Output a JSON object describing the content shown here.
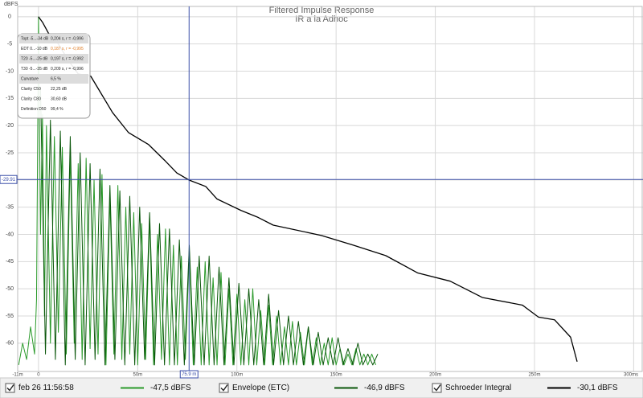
{
  "chart_data": {
    "type": "line",
    "title": "Filtered Impulse Response",
    "subtitle": "IR a la Adhoc",
    "y_label": "dBFS",
    "xlim": [
      -10.5,
      304.7
    ],
    "ylim": [
      -65.2,
      1.9
    ],
    "xticks": [
      {
        "value": -10.5,
        "label": "-11m"
      },
      0,
      {
        "value": 50,
        "label": "50m"
      },
      {
        "value": 100,
        "label": "100m"
      },
      {
        "value": 150,
        "label": "150m"
      },
      {
        "value": 200,
        "label": "200m"
      },
      {
        "value": 250,
        "label": "250m"
      },
      {
        "value": 300,
        "label": "300ms"
      }
    ],
    "yticks": [
      0,
      -5,
      -10,
      -15,
      -20,
      -25,
      -30,
      -35,
      -40,
      -45,
      -50,
      -55,
      -60
    ],
    "grid": true,
    "cursor": {
      "x": {
        "value": 75.9,
        "label": "75.9 m"
      },
      "y": -29.91,
      "color": "#3a4ea8"
    },
    "series": [
      {
        "name": "feb 26 11:56:58",
        "color": "#2a9a2a",
        "readout": "-47,5 dBFS",
        "x": [
          -10,
          -8,
          -6,
          -4,
          -2,
          -1,
          0,
          1,
          2,
          3,
          4,
          6,
          8,
          10,
          12,
          14,
          16,
          18,
          20,
          22,
          24,
          26,
          28,
          30,
          32,
          34,
          36,
          38,
          40,
          42,
          44,
          46,
          48,
          50,
          52,
          54,
          56,
          58,
          60,
          62,
          64,
          66,
          68,
          70,
          72,
          74,
          76,
          78,
          80,
          82,
          84,
          86,
          88,
          90,
          92,
          94,
          96,
          98,
          100,
          102,
          104,
          106,
          108,
          110,
          112,
          114,
          116,
          118,
          120,
          122,
          124,
          126,
          128,
          130,
          132,
          134,
          136,
          138,
          140,
          142,
          144,
          146,
          148,
          150,
          152,
          154,
          156,
          158,
          160,
          162,
          164,
          166,
          168,
          170
        ],
        "values": [
          -64,
          -60,
          -63,
          -57,
          -62,
          -52,
          0,
          -40,
          -18,
          -55,
          -20,
          -60,
          -22,
          -58,
          -24,
          -62,
          -25,
          -60,
          -27,
          -63,
          -26,
          -61,
          -30,
          -62,
          -29,
          -64,
          -33,
          -62,
          -31,
          -63,
          -35,
          -62,
          -36,
          -64,
          -38,
          -63,
          -37,
          -64,
          -40,
          -63,
          -39,
          -64,
          -42,
          -64,
          -44,
          -63,
          -43,
          -64,
          -46,
          -64,
          -45,
          -64,
          -48,
          -64,
          -47,
          -64,
          -50,
          -64,
          -51,
          -64,
          -52,
          -64,
          -50,
          -64,
          -54,
          -64,
          -53,
          -64,
          -55,
          -64,
          -57,
          -64,
          -56,
          -64,
          -58,
          -64,
          -57,
          -64,
          -59,
          -64,
          -60,
          -64,
          -59,
          -64,
          -61,
          -64,
          -62,
          -64,
          -61,
          -64,
          -62,
          -64,
          -62,
          -64
        ]
      },
      {
        "name": "Envelope (ETC)",
        "color": "#0a560a",
        "readout": "-46,9 dBFS",
        "x": [
          1,
          3.5,
          6,
          8.5,
          11,
          13.5,
          16,
          18.5,
          21,
          23.5,
          26,
          28.5,
          31,
          33.5,
          36,
          38.5,
          41,
          43.5,
          46,
          48.5,
          51,
          53.5,
          56,
          58.5,
          61,
          63.5,
          66,
          68.5,
          71,
          73.5,
          76,
          78.5,
          81,
          83.5,
          86,
          88.5,
          91,
          93.5,
          96,
          98.5,
          101,
          103.5,
          106,
          108.5,
          111,
          113.5,
          116,
          118.5,
          121,
          123.5,
          126,
          128.5,
          131,
          133.5,
          136,
          138.5,
          141,
          143.5,
          146,
          148.5,
          151,
          153.5,
          156,
          158.5,
          161,
          163.5,
          166,
          168.5,
          171
        ],
        "values": [
          -13,
          -62,
          -19,
          -63,
          -21,
          -64,
          -22,
          -63,
          -25,
          -64,
          -27,
          -63,
          -28,
          -64,
          -31,
          -63,
          -32,
          -64,
          -33,
          -64,
          -35,
          -63,
          -36,
          -64,
          -38,
          -64,
          -39,
          -64,
          -41,
          -64,
          -42,
          -64,
          -44,
          -64,
          -44,
          -64,
          -46,
          -64,
          -48,
          -64,
          -49,
          -64,
          -50,
          -64,
          -52,
          -64,
          -51,
          -64,
          -54,
          -64,
          -55,
          -64,
          -56,
          -64,
          -57,
          -64,
          -58,
          -64,
          -59,
          -64,
          -59,
          -64,
          -61,
          -64,
          -60,
          -64,
          -62,
          -64,
          -62
        ]
      },
      {
        "name": "Schroeder Integral",
        "color": "#000000",
        "readout": "-30,1 dBFS",
        "x": [
          0,
          2,
          5,
          10,
          15,
          20,
          26.3,
          37.3,
          45.4,
          55.5,
          63.6,
          69.7,
          75.8,
          84.3,
          90,
          102.1,
          110.2,
          118.3,
          142.6,
          158.8,
          175,
          191.2,
          207.5,
          223.7,
          243.9,
          252,
          260.1,
          268.2,
          271.5
        ],
        "values": [
          0,
          -1,
          -3,
          -5,
          -8,
          -10.5,
          -10.9,
          -17.6,
          -21.3,
          -23.5,
          -26.4,
          -28.7,
          -30,
          -31.2,
          -33.5,
          -35.6,
          -36.8,
          -38.3,
          -40.2,
          -42,
          -43.9,
          -47.1,
          -48.6,
          -51.6,
          -53,
          -55.2,
          -55.7,
          -58.9,
          -63.4
        ]
      }
    ],
    "stats": [
      {
        "label": "Topt -5...-34 dB",
        "value": "0,204 s, r = -0,996"
      },
      {
        "label": "EDT 0...-10 dB",
        "value": "0,187 s, r = -0,995",
        "color": "#e07a20"
      },
      {
        "label": "T20 -5...-25 dB",
        "value": "0,197 s, r = -0,992"
      },
      {
        "label": "T30 -5...-35 dB",
        "value": "0,209 s, r = -0,996"
      },
      {
        "label": "Curvature",
        "value": "6,5 %"
      },
      {
        "label": "Clarity C50",
        "value": "22,25 dB"
      },
      {
        "label": "Clarity C80",
        "value": "30,60 dB"
      },
      {
        "label": "Definition D50",
        "value": "99,4 %"
      }
    ]
  }
}
